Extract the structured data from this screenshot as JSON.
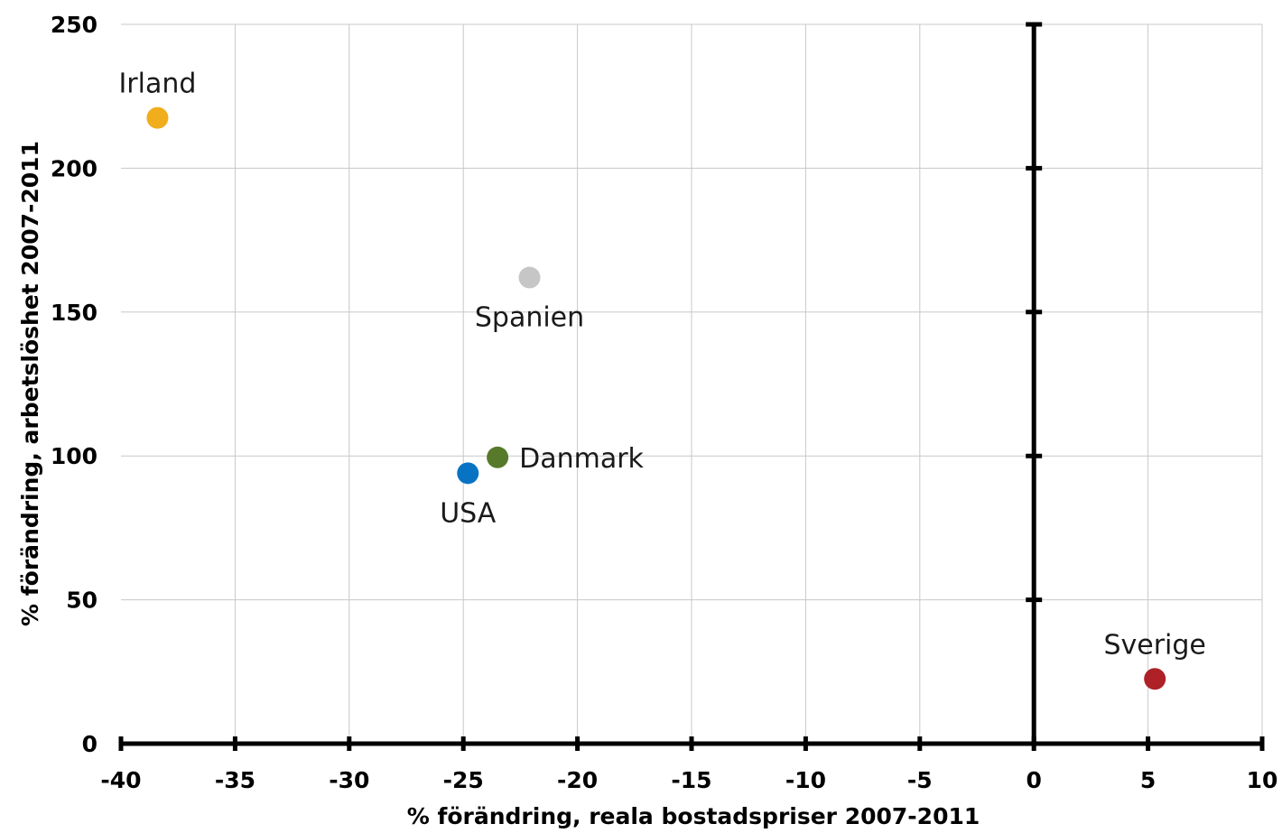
{
  "chart_data": {
    "type": "scatter",
    "title": "",
    "xlabel": "% förändring, reala bostadspriser 2007-2011",
    "ylabel": "% förändring, arbetslöshet 2007-2011",
    "xlim": [
      -40,
      10
    ],
    "ylim": [
      0,
      250
    ],
    "x_ticks": [
      -40,
      -35,
      -30,
      -25,
      -20,
      -15,
      -10,
      -5,
      0,
      5,
      10
    ],
    "y_ticks": [
      0,
      50,
      100,
      150,
      200,
      250
    ],
    "grid": true,
    "legend": "none",
    "points": [
      {
        "name": "Irland",
        "x": -38.4,
        "y": 217.5,
        "color": "#f0ad1c",
        "label_pos": "above"
      },
      {
        "name": "Spanien",
        "x": -22.1,
        "y": 162,
        "color": "#c6c6c6",
        "label_pos": "below"
      },
      {
        "name": "Danmark",
        "x": -23.5,
        "y": 99.5,
        "color": "#577a2a",
        "label_pos": "right"
      },
      {
        "name": "USA",
        "x": -24.8,
        "y": 94,
        "color": "#0873c3",
        "label_pos": "below"
      },
      {
        "name": "Sverige",
        "x": 5.3,
        "y": 22.5,
        "color": "#ad2127",
        "label_pos": "above"
      }
    ]
  }
}
